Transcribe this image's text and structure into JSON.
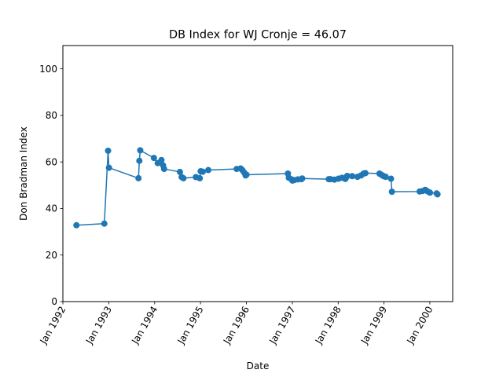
{
  "chart_data": {
    "type": "line",
    "title": "DB Index for WJ Cronje = 46.07",
    "xlabel": "Date",
    "ylabel": "Don Bradman Index",
    "ylim": [
      0,
      110
    ],
    "xlim": [
      "1992-01-01",
      "2000-07-01"
    ],
    "yticks": [
      0,
      20,
      40,
      60,
      80,
      100
    ],
    "xticks": [
      "Jan 1992",
      "Jan 1993",
      "Jan 1994",
      "Jan 1995",
      "Jan 1996",
      "Jan 1997",
      "Jan 1998",
      "Jan 1999",
      "Jan 2000"
    ],
    "grid": false,
    "legend": "none",
    "color": "#1f77b4",
    "series": [
      {
        "x": [
          "1992-04-18",
          "1992-11-26",
          "1992-12-26",
          "1993-01-02",
          "1993-08-25",
          "1993-09-01",
          "1993-09-08",
          "1993-12-26",
          "1994-01-25",
          "1994-02-24",
          "1994-03-09",
          "1994-03-17",
          "1994-07-21",
          "1994-08-04",
          "1994-08-18",
          "1994-11-25",
          "1994-12-26",
          "1995-01-02",
          "1995-01-19",
          "1995-03-04",
          "1995-10-16",
          "1995-11-16",
          "1995-11-30",
          "1995-12-14",
          "1995-12-26",
          "1996-01-02",
          "1996-11-27",
          "1996-12-04",
          "1996-12-26",
          "1997-01-02",
          "1997-01-15",
          "1997-02-14",
          "1997-03-14",
          "1997-03-21",
          "1997-10-18",
          "1997-11-01",
          "1997-12-02",
          "1998-01-03",
          "1998-01-31",
          "1998-02-27",
          "1998-03-06",
          "1998-03-14",
          "1998-04-23",
          "1998-06-04",
          "1998-07-02",
          "1998-07-23",
          "1998-08-06",
          "1998-11-26",
          "1998-12-10",
          "1998-12-26",
          "1999-01-02",
          "1999-01-15",
          "1999-02-26",
          "1999-03-05",
          "1999-10-12",
          "1999-11-04",
          "1999-11-25",
          "1999-12-10",
          "1999-12-26",
          "2000-01-02",
          "2000-02-24",
          "2000-03-02"
        ],
        "values": [
          32.8,
          33.5,
          64.8,
          57.5,
          53.0,
          60.5,
          65.0,
          61.7,
          59.5,
          60.8,
          58.5,
          57.0,
          55.7,
          53.5,
          53.0,
          53.5,
          53.0,
          56.0,
          55.8,
          56.5,
          57.0,
          57.2,
          56.5,
          55.5,
          54.2,
          54.5,
          55.0,
          53.2,
          52.5,
          52.0,
          52.2,
          52.5,
          52.6,
          52.9,
          52.6,
          52.6,
          52.4,
          52.8,
          53.2,
          52.7,
          53.4,
          54.0,
          53.9,
          53.6,
          54.2,
          55.0,
          55.2,
          55.0,
          54.5,
          54.0,
          53.8,
          53.6,
          52.8,
          47.2,
          47.3,
          47.5,
          48.0,
          47.5,
          47.0,
          46.8,
          46.5,
          46.1
        ]
      }
    ]
  }
}
